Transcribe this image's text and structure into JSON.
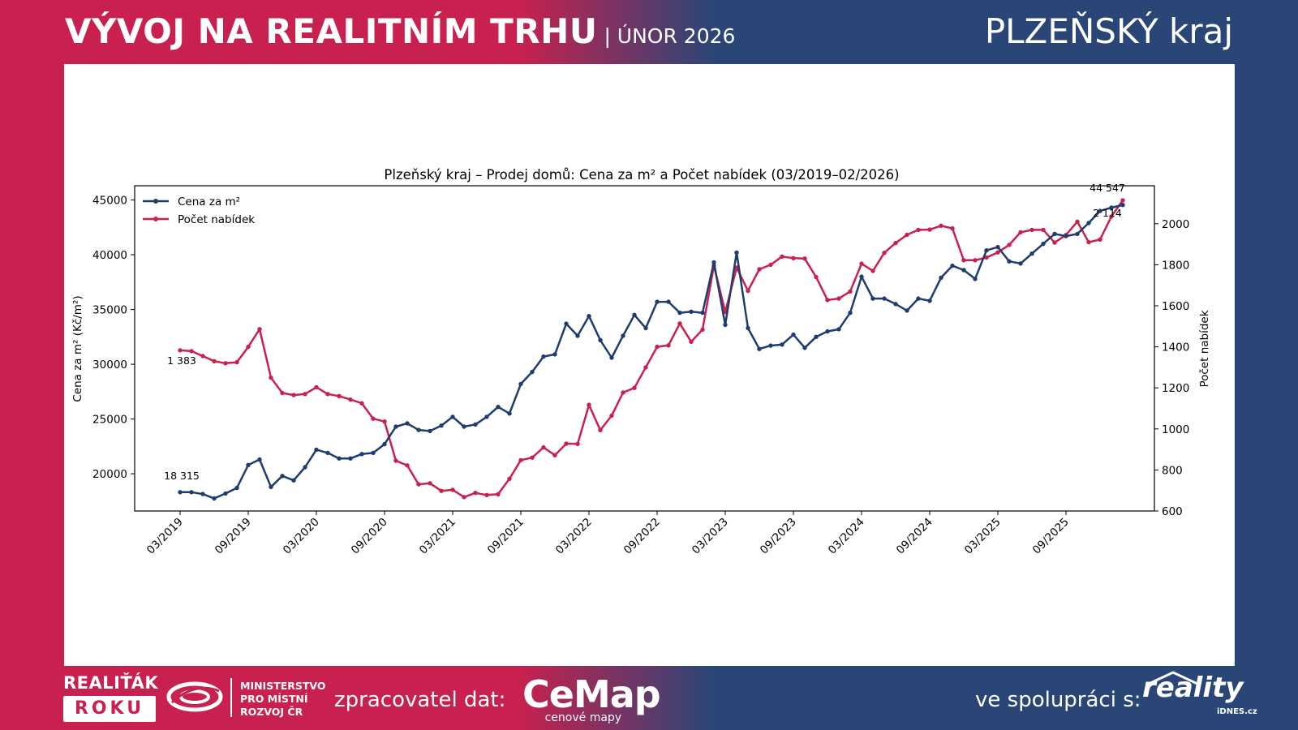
{
  "header": {
    "title": "VÝVOJ NA REALITNÍM TRHU",
    "subtitle": "| ÚNOR 2026",
    "region": "PLZEŇSKÝ kraj"
  },
  "footer": {
    "realitak_top": "REALIŤÁK",
    "realitak_bottom": "ROKU",
    "ministry_line1": "MINISTERSTVO",
    "ministry_line2": "PRO MÍSTNÍ",
    "ministry_line3": "ROZVOJ ČR",
    "processor_label": "zpracovatel dat:",
    "cemap_name": "CeMap",
    "cemap_sub": "cenové mapy",
    "partner_label": "ve spolupráci s:",
    "reality_name": "reality",
    "reality_sub": "iDNES.cz"
  },
  "chart_data": {
    "type": "line",
    "title": "Plzeňský kraj – Prodej domů: Cena za m² a Počet nabídek (03/2019–02/2026)",
    "ylabel": "Cena za m² (Kč/m²)",
    "y2label": "Počet nabídek",
    "ylim": [
      16600,
      46300
    ],
    "y2lim": [
      600,
      2185
    ],
    "yticks": [
      20000,
      25000,
      30000,
      35000,
      40000,
      45000
    ],
    "ytick_labels": [
      "20000",
      "25000",
      "30000",
      "35000",
      "40000",
      "45000"
    ],
    "y2ticks": [
      600,
      800,
      1000,
      1200,
      1400,
      1600,
      1800,
      2000
    ],
    "xtick_labels": [
      "03/2019",
      "09/2019",
      "03/2020",
      "09/2020",
      "03/2021",
      "09/2021",
      "03/2022",
      "09/2022",
      "03/2023",
      "09/2023",
      "03/2024",
      "09/2024",
      "03/2025",
      "09/2025"
    ],
    "legend_position": "top-left",
    "grid": false,
    "colors": {
      "price": "#1f3c6e",
      "count": "#c8214f"
    },
    "annotations": {
      "price_first": "18 315",
      "price_last": "44 547",
      "count_first": "1 383",
      "count_last": "2 114"
    },
    "series": [
      {
        "name": "Cena za m²",
        "axis": "left",
        "values": [
          18315,
          18320,
          18150,
          17750,
          18200,
          18700,
          20800,
          21300,
          18800,
          19800,
          19400,
          20600,
          22200,
          21900,
          21400,
          21400,
          21800,
          21900,
          22700,
          24300,
          24600,
          24000,
          23900,
          24400,
          25200,
          24300,
          24500,
          25200,
          26100,
          25500,
          28200,
          29300,
          30700,
          30900,
          33700,
          32600,
          34400,
          32200,
          30600,
          32600,
          34500,
          33300,
          35700,
          35700,
          34700,
          34800,
          34700,
          39300,
          33600,
          40200,
          33300,
          31400,
          31700,
          31800,
          32700,
          31500,
          32500,
          33000,
          33200,
          34700,
          38000,
          36000,
          36000,
          35500,
          34900,
          36000,
          35800,
          37900,
          39000,
          38600,
          37800,
          40400,
          40700,
          39400,
          39200,
          40100,
          41000,
          41900,
          41700,
          41900,
          42900,
          44000,
          44300,
          44547
        ]
      },
      {
        "name": "Počet nabídek",
        "axis": "right",
        "values": [
          1383,
          1379,
          1355,
          1330,
          1320,
          1325,
          1400,
          1486,
          1250,
          1175,
          1165,
          1170,
          1203,
          1170,
          1160,
          1143,
          1125,
          1050,
          1036,
          845,
          822,
          730,
          735,
          698,
          703,
          668,
          688,
          678,
          682,
          757,
          848,
          860,
          910,
          872,
          928,
          927,
          1117,
          994,
          1065,
          1177,
          1200,
          1300,
          1400,
          1407,
          1514,
          1425,
          1484,
          1796,
          1570,
          1786,
          1673,
          1778,
          1800,
          1840,
          1832,
          1830,
          1740,
          1628,
          1635,
          1670,
          1805,
          1770,
          1858,
          1906,
          1946,
          1970,
          1971,
          1990,
          1977,
          1822,
          1822,
          1835,
          1860,
          1897,
          1958,
          1970,
          1970,
          1908,
          1945,
          2010,
          1910,
          1923,
          2035,
          2114
        ]
      }
    ]
  }
}
